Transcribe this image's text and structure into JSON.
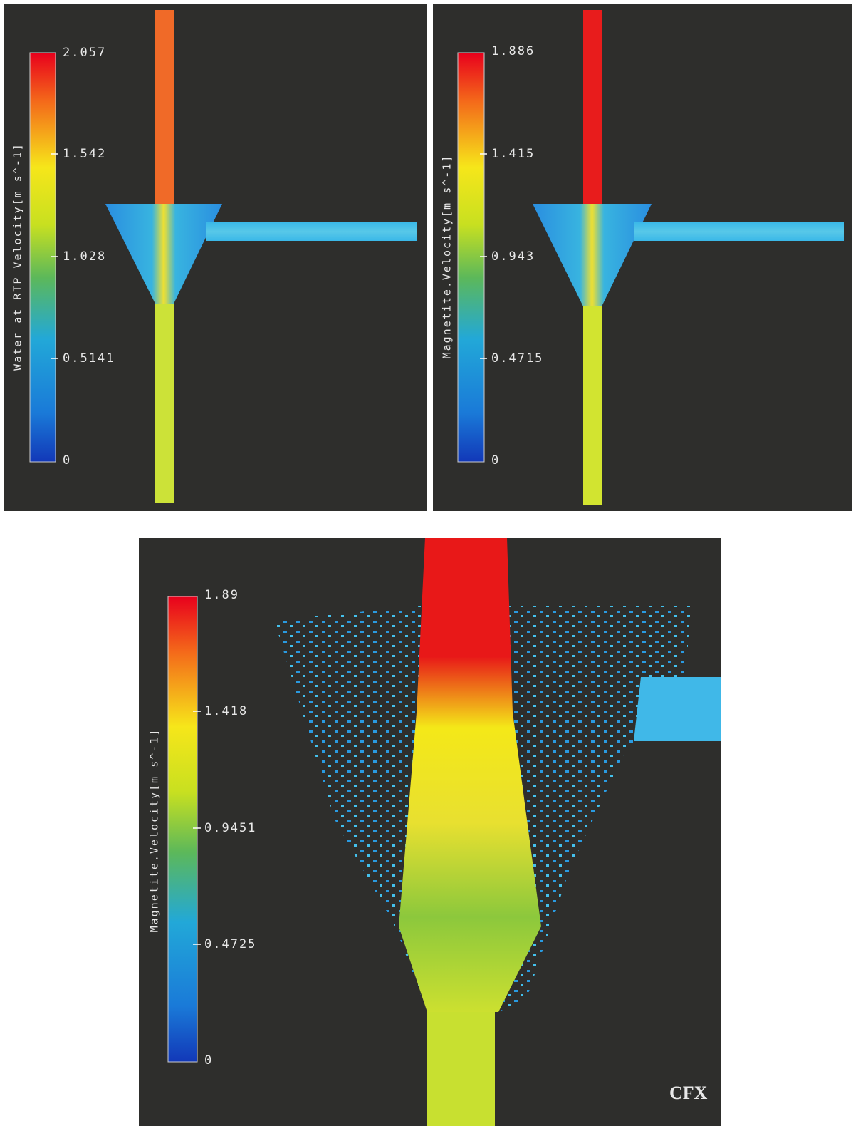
{
  "panels": [
    {
      "legend": {
        "title": "Water at RTP Velocity[m s^-1]",
        "ticks": [
          "2.057",
          "1.542",
          "1.028",
          "0.5141",
          "0"
        ]
      }
    },
    {
      "legend": {
        "title": "Magnetite.Velocity[m s^-1]",
        "ticks": [
          "1.886",
          "1.415",
          "0.943",
          "0.4715",
          "0"
        ]
      }
    },
    {
      "legend": {
        "title": "Magnetite.Velocity[m s^-1]",
        "ticks": [
          "1.89",
          "1.418",
          "0.9451",
          "0.4725",
          "0"
        ]
      }
    }
  ],
  "logo": "CFX"
}
